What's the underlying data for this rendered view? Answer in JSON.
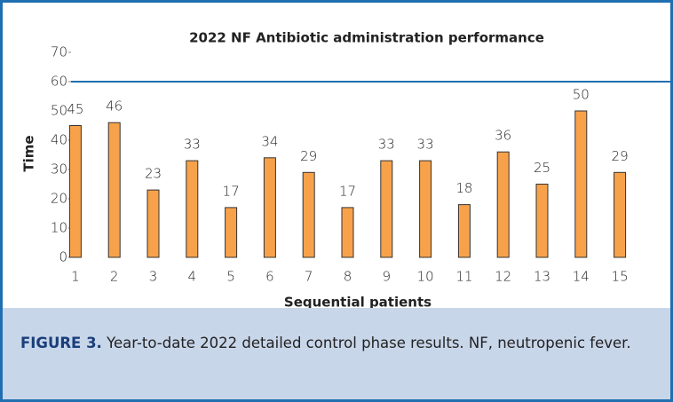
{
  "chart_data": {
    "type": "bar",
    "title": "2022 NF Antibiotic administration performance",
    "x_label": "Sequential patients",
    "y_label": "Time",
    "categories": [
      "1",
      "2",
      "3",
      "4",
      "5",
      "6",
      "7",
      "8",
      "9",
      "10",
      "11",
      "12",
      "13",
      "14",
      "15"
    ],
    "values": [
      45,
      46,
      23,
      33,
      17,
      34,
      29,
      17,
      33,
      33,
      18,
      36,
      25,
      50,
      29
    ],
    "color": "#f7a24b",
    "ylim": [
      0,
      70
    ],
    "yticks": [
      0,
      10,
      20,
      30,
      40,
      50,
      60,
      70
    ],
    "reference_line": 60,
    "reference_color": "#1f6fb0",
    "grid": false
  },
  "caption": {
    "label": "FIGURE 3.",
    "text": "Year-to-date 2022 detailed control phase results. NF, neutropenic fever."
  }
}
